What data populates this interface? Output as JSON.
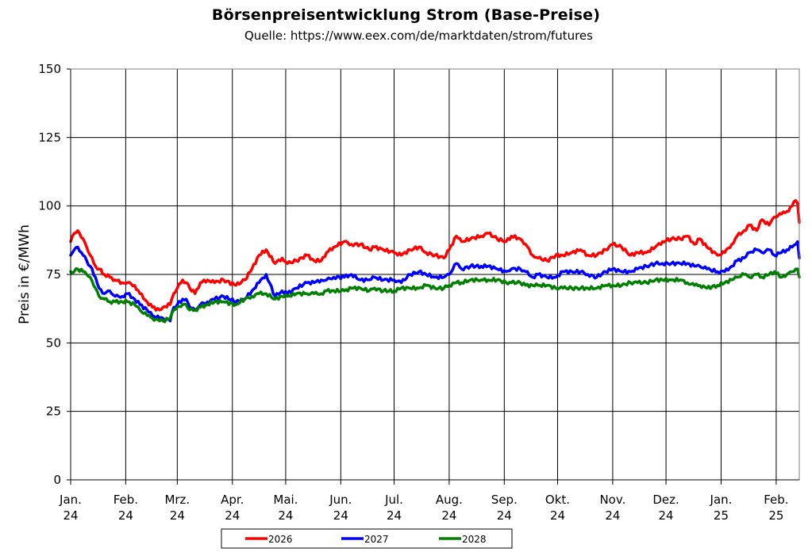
{
  "chart_data": {
    "type": "line",
    "title": "Börsenpreisentwicklung Strom (Base-Preise)",
    "subtitle": "Quelle:  https://www.eex.com/de/marktdaten/strom/futures",
    "xlabel": "",
    "ylabel": "Preis in €/MWh",
    "ylim": [
      0,
      150
    ],
    "yticks": [
      0,
      25,
      50,
      75,
      100,
      125,
      150
    ],
    "grid": true,
    "legend_position": "bottom",
    "xlim": [
      "2024-01-01",
      "2025-02-14"
    ],
    "x_ticks": [
      {
        "date": "2024-01-01",
        "label": [
          "Jan.",
          "24"
        ]
      },
      {
        "date": "2024-02-01",
        "label": [
          "Feb.",
          "24"
        ]
      },
      {
        "date": "2024-03-01",
        "label": [
          "Mrz.",
          "24"
        ]
      },
      {
        "date": "2024-04-01",
        "label": [
          "Apr.",
          "24"
        ]
      },
      {
        "date": "2024-05-01",
        "label": [
          "Mai.",
          "24"
        ]
      },
      {
        "date": "2024-06-01",
        "label": [
          "Jun.",
          "24"
        ]
      },
      {
        "date": "2024-07-01",
        "label": [
          "Jul.",
          "24"
        ]
      },
      {
        "date": "2024-08-01",
        "label": [
          "Aug.",
          "24"
        ]
      },
      {
        "date": "2024-09-01",
        "label": [
          "Sep.",
          "24"
        ]
      },
      {
        "date": "2024-10-01",
        "label": [
          "Okt.",
          "24"
        ]
      },
      {
        "date": "2024-11-01",
        "label": [
          "Nov.",
          "24"
        ]
      },
      {
        "date": "2024-12-01",
        "label": [
          "Dez.",
          "24"
        ]
      },
      {
        "date": "2025-01-01",
        "label": [
          "Jan.",
          "25"
        ]
      },
      {
        "date": "2025-02-01",
        "label": [
          "Feb.",
          "25"
        ]
      }
    ],
    "series": [
      {
        "name": "2026",
        "color": "#ff0000",
        "x": [
          "2024-01-01",
          "2024-01-03",
          "2024-01-05",
          "2024-01-08",
          "2024-01-10",
          "2024-01-12",
          "2024-01-15",
          "2024-01-17",
          "2024-01-20",
          "2024-01-23",
          "2024-01-26",
          "2024-01-30",
          "2024-02-02",
          "2024-02-06",
          "2024-02-09",
          "2024-02-13",
          "2024-02-16",
          "2024-02-20",
          "2024-02-22",
          "2024-02-26",
          "2024-02-28",
          "2024-03-01",
          "2024-03-04",
          "2024-03-06",
          "2024-03-08",
          "2024-03-11",
          "2024-03-14",
          "2024-03-18",
          "2024-03-22",
          "2024-03-27",
          "2024-04-03",
          "2024-04-08",
          "2024-04-12",
          "2024-04-16",
          "2024-04-20",
          "2024-04-25",
          "2024-04-29",
          "2024-05-02",
          "2024-05-07",
          "2024-05-13",
          "2024-05-17",
          "2024-05-21",
          "2024-05-24",
          "2024-05-28",
          "2024-06-03",
          "2024-06-07",
          "2024-06-12",
          "2024-06-17",
          "2024-06-20",
          "2024-06-25",
          "2024-07-01",
          "2024-07-05",
          "2024-07-10",
          "2024-07-15",
          "2024-07-19",
          "2024-07-24",
          "2024-07-29",
          "2024-08-01",
          "2024-08-05",
          "2024-08-08",
          "2024-08-13",
          "2024-08-19",
          "2024-08-23",
          "2024-08-28",
          "2024-09-02",
          "2024-09-05",
          "2024-09-10",
          "2024-09-13",
          "2024-09-17",
          "2024-09-20",
          "2024-09-25",
          "2024-09-30",
          "2024-10-04",
          "2024-10-09",
          "2024-10-14",
          "2024-10-18",
          "2024-10-23",
          "2024-10-28",
          "2024-11-01",
          "2024-11-06",
          "2024-11-11",
          "2024-11-15",
          "2024-11-20",
          "2024-11-25",
          "2024-11-29",
          "2024-12-04",
          "2024-12-09",
          "2024-12-13",
          "2024-12-17",
          "2024-12-20",
          "2024-12-24",
          "2024-12-30",
          "2025-01-03",
          "2025-01-07",
          "2025-01-10",
          "2025-01-14",
          "2025-01-17",
          "2025-01-21",
          "2025-01-24",
          "2025-01-28",
          "2025-01-31",
          "2025-02-04",
          "2025-02-07",
          "2025-02-10",
          "2025-02-12",
          "2025-02-13",
          "2025-02-14"
        ],
        "values": [
          87,
          90,
          91,
          88,
          85,
          82,
          78,
          77,
          75,
          74,
          73,
          72,
          72,
          71,
          68,
          65,
          63,
          62,
          63,
          64,
          68,
          70,
          73,
          72,
          70,
          68,
          72,
          73,
          72,
          73,
          71,
          73,
          77,
          82,
          84,
          79,
          81,
          79,
          80,
          82,
          80,
          80,
          83,
          85,
          87,
          86,
          86,
          84,
          85,
          84,
          83,
          82,
          84,
          85,
          83,
          82,
          81,
          84,
          89,
          87,
          88,
          89,
          90,
          88,
          87,
          89,
          88,
          86,
          82,
          81,
          80,
          82,
          82,
          83,
          84,
          82,
          82,
          84,
          86,
          85,
          82,
          83,
          83,
          85,
          87,
          88,
          88,
          89,
          86,
          88,
          85,
          82,
          83,
          86,
          89,
          91,
          93,
          91,
          95,
          93,
          96,
          97,
          98,
          100,
          102,
          101,
          94
        ]
      },
      {
        "name": "2027",
        "color": "#0000ff",
        "x": [
          "2024-01-01",
          "2024-01-03",
          "2024-01-05",
          "2024-01-08",
          "2024-01-10",
          "2024-01-12",
          "2024-01-15",
          "2024-01-17",
          "2024-01-20",
          "2024-01-23",
          "2024-01-26",
          "2024-01-30",
          "2024-02-02",
          "2024-02-06",
          "2024-02-09",
          "2024-02-13",
          "2024-02-16",
          "2024-02-20",
          "2024-02-22",
          "2024-02-26",
          "2024-02-28",
          "2024-03-01",
          "2024-03-04",
          "2024-03-06",
          "2024-03-08",
          "2024-03-11",
          "2024-03-14",
          "2024-03-18",
          "2024-03-22",
          "2024-03-27",
          "2024-04-03",
          "2024-04-08",
          "2024-04-12",
          "2024-04-16",
          "2024-04-20",
          "2024-04-25",
          "2024-04-29",
          "2024-05-02",
          "2024-05-07",
          "2024-05-13",
          "2024-05-17",
          "2024-05-21",
          "2024-05-24",
          "2024-05-28",
          "2024-06-03",
          "2024-06-07",
          "2024-06-12",
          "2024-06-17",
          "2024-06-20",
          "2024-06-25",
          "2024-07-01",
          "2024-07-05",
          "2024-07-10",
          "2024-07-15",
          "2024-07-19",
          "2024-07-24",
          "2024-07-29",
          "2024-08-01",
          "2024-08-05",
          "2024-08-08",
          "2024-08-13",
          "2024-08-19",
          "2024-08-23",
          "2024-08-28",
          "2024-09-02",
          "2024-09-05",
          "2024-09-10",
          "2024-09-13",
          "2024-09-17",
          "2024-09-20",
          "2024-09-25",
          "2024-09-30",
          "2024-10-04",
          "2024-10-09",
          "2024-10-14",
          "2024-10-18",
          "2024-10-23",
          "2024-10-28",
          "2024-11-01",
          "2024-11-06",
          "2024-11-11",
          "2024-11-15",
          "2024-11-20",
          "2024-11-25",
          "2024-11-29",
          "2024-12-04",
          "2024-12-09",
          "2024-12-13",
          "2024-12-17",
          "2024-12-20",
          "2024-12-24",
          "2024-12-30",
          "2025-01-03",
          "2025-01-07",
          "2025-01-10",
          "2025-01-14",
          "2025-01-17",
          "2025-01-21",
          "2025-01-24",
          "2025-01-28",
          "2025-01-31",
          "2025-02-04",
          "2025-02-07",
          "2025-02-10",
          "2025-02-12",
          "2025-02-13",
          "2025-02-14"
        ],
        "values": [
          82,
          84,
          85,
          82,
          80,
          78,
          74,
          70,
          68,
          69,
          67,
          67,
          68,
          66,
          64,
          62,
          60,
          59,
          59,
          58,
          63,
          64,
          66,
          66,
          63,
          62,
          64,
          65,
          66,
          67,
          65,
          66,
          69,
          72,
          75,
          67,
          69,
          68,
          70,
          72,
          72,
          73,
          73,
          74,
          74,
          75,
          73,
          73,
          74,
          73,
          73,
          72,
          75,
          76,
          75,
          74,
          74,
          75,
          79,
          77,
          78,
          78,
          78,
          77,
          76,
          77,
          77,
          76,
          74,
          75,
          74,
          74,
          76,
          76,
          76,
          75,
          74,
          76,
          77,
          76,
          76,
          77,
          78,
          79,
          79,
          79,
          79,
          79,
          78,
          78,
          77,
          76,
          76,
          78,
          80,
          81,
          83,
          84,
          83,
          84,
          82,
          83,
          84,
          85,
          86,
          87,
          81
        ]
      },
      {
        "name": "2028",
        "color": "#008000",
        "x": [
          "2024-01-01",
          "2024-01-03",
          "2024-01-05",
          "2024-01-08",
          "2024-01-10",
          "2024-01-12",
          "2024-01-15",
          "2024-01-17",
          "2024-01-20",
          "2024-01-23",
          "2024-01-26",
          "2024-01-30",
          "2024-02-02",
          "2024-02-06",
          "2024-02-09",
          "2024-02-13",
          "2024-02-16",
          "2024-02-20",
          "2024-02-22",
          "2024-02-26",
          "2024-02-28",
          "2024-03-01",
          "2024-03-04",
          "2024-03-06",
          "2024-03-08",
          "2024-03-11",
          "2024-03-14",
          "2024-03-18",
          "2024-03-22",
          "2024-03-27",
          "2024-04-03",
          "2024-04-08",
          "2024-04-12",
          "2024-04-16",
          "2024-04-20",
          "2024-04-25",
          "2024-04-29",
          "2024-05-02",
          "2024-05-07",
          "2024-05-13",
          "2024-05-17",
          "2024-05-21",
          "2024-05-24",
          "2024-05-28",
          "2024-06-03",
          "2024-06-07",
          "2024-06-12",
          "2024-06-17",
          "2024-06-20",
          "2024-06-25",
          "2024-07-01",
          "2024-07-05",
          "2024-07-10",
          "2024-07-15",
          "2024-07-19",
          "2024-07-24",
          "2024-07-29",
          "2024-08-01",
          "2024-08-05",
          "2024-08-08",
          "2024-08-13",
          "2024-08-19",
          "2024-08-23",
          "2024-08-28",
          "2024-09-02",
          "2024-09-05",
          "2024-09-10",
          "2024-09-13",
          "2024-09-17",
          "2024-09-20",
          "2024-09-25",
          "2024-09-30",
          "2024-10-04",
          "2024-10-09",
          "2024-10-14",
          "2024-10-18",
          "2024-10-23",
          "2024-10-28",
          "2024-11-01",
          "2024-11-06",
          "2024-11-11",
          "2024-11-15",
          "2024-11-20",
          "2024-11-25",
          "2024-11-29",
          "2024-12-04",
          "2024-12-09",
          "2024-12-13",
          "2024-12-17",
          "2024-12-20",
          "2024-12-24",
          "2024-12-30",
          "2025-01-03",
          "2025-01-07",
          "2025-01-10",
          "2025-01-14",
          "2025-01-17",
          "2025-01-21",
          "2025-01-24",
          "2025-01-28",
          "2025-01-31",
          "2025-02-04",
          "2025-02-07",
          "2025-02-10",
          "2025-02-12",
          "2025-02-13",
          "2025-02-14"
        ],
        "values": [
          76,
          76,
          77,
          76,
          75,
          74,
          70,
          67,
          66,
          65,
          65,
          65,
          65,
          64,
          62,
          60,
          59,
          58,
          58,
          59,
          62,
          63,
          64,
          64,
          62,
          62,
          63,
          64,
          65,
          65,
          64,
          66,
          67,
          68,
          68,
          66,
          67,
          67,
          68,
          68,
          68,
          68,
          69,
          69,
          69,
          70,
          70,
          69,
          70,
          69,
          69,
          70,
          70,
          70,
          71,
          70,
          70,
          71,
          72,
          72,
          73,
          73,
          73,
          73,
          72,
          72,
          72,
          71,
          71,
          71,
          71,
          70,
          70,
          70,
          70,
          70,
          70,
          71,
          71,
          71,
          72,
          72,
          72,
          73,
          73,
          73,
          73,
          72,
          71,
          71,
          70,
          71,
          72,
          73,
          74,
          75,
          74,
          75,
          74,
          75,
          76,
          74,
          75,
          76,
          77,
          77,
          74
        ]
      }
    ]
  }
}
